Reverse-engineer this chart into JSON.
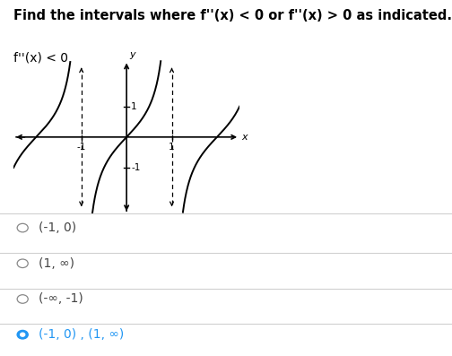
{
  "title": "Find the intervals where f''(x) < 0 or f''(x) > 0 as indicated.",
  "subtitle": "f''(x) < 0",
  "options": [
    "(-1, 0)",
    "(1, ∞)",
    "(-∞, -1)",
    "(-1, 0) , (1, ∞)"
  ],
  "correct_index": 3,
  "background_color": "#ffffff",
  "text_color": "#000000",
  "option_color": "#444444",
  "correct_color": "#2196f3",
  "title_fontsize": 10.5,
  "subtitle_fontsize": 10,
  "option_fontsize": 10,
  "graph_xlim": [
    -2.5,
    2.5
  ],
  "graph_ylim": [
    -2.5,
    2.5
  ],
  "asymptotes": [
    -1,
    1
  ]
}
